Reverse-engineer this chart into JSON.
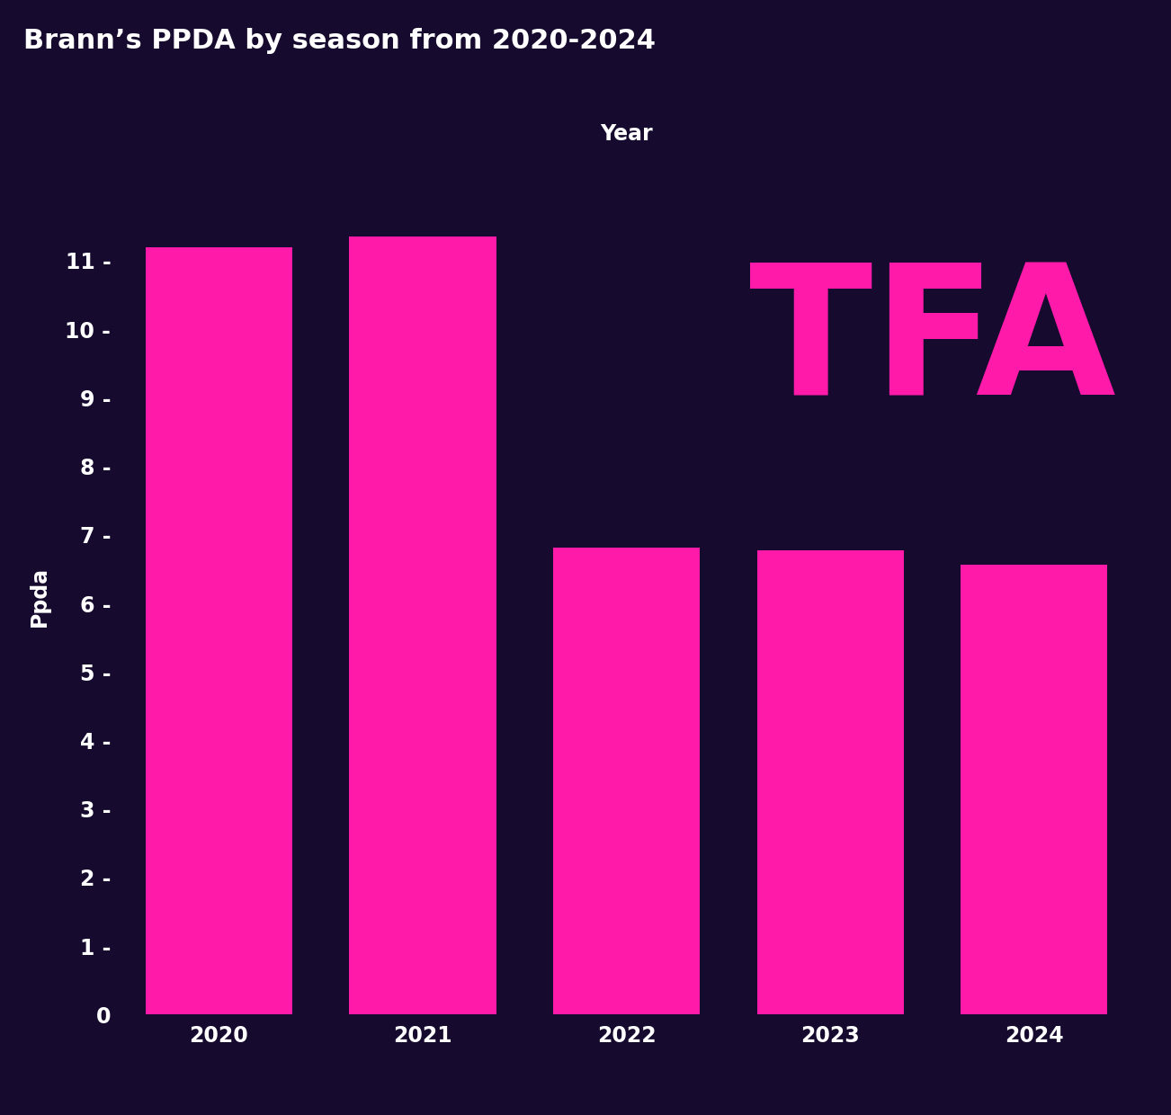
{
  "title": "Brann’s PPDA by season from 2020-2024",
  "xlabel": "Year",
  "ylabel": "Ppda",
  "categories": [
    "2020",
    "2021",
    "2022",
    "2023",
    "2024"
  ],
  "values": [
    11.2,
    11.35,
    6.82,
    6.78,
    6.57
  ],
  "bar_color": "#ff1aaa",
  "background_color": "#160a2e",
  "text_color": "#ffffff",
  "ylim": [
    0,
    12.2
  ],
  "yticks": [
    0,
    1,
    2,
    3,
    4,
    5,
    6,
    7,
    8,
    9,
    10,
    11
  ],
  "tfa_color": "#ff1aaa",
  "title_fontsize": 22,
  "axis_label_fontsize": 17,
  "tick_fontsize": 17,
  "bar_width": 0.72
}
